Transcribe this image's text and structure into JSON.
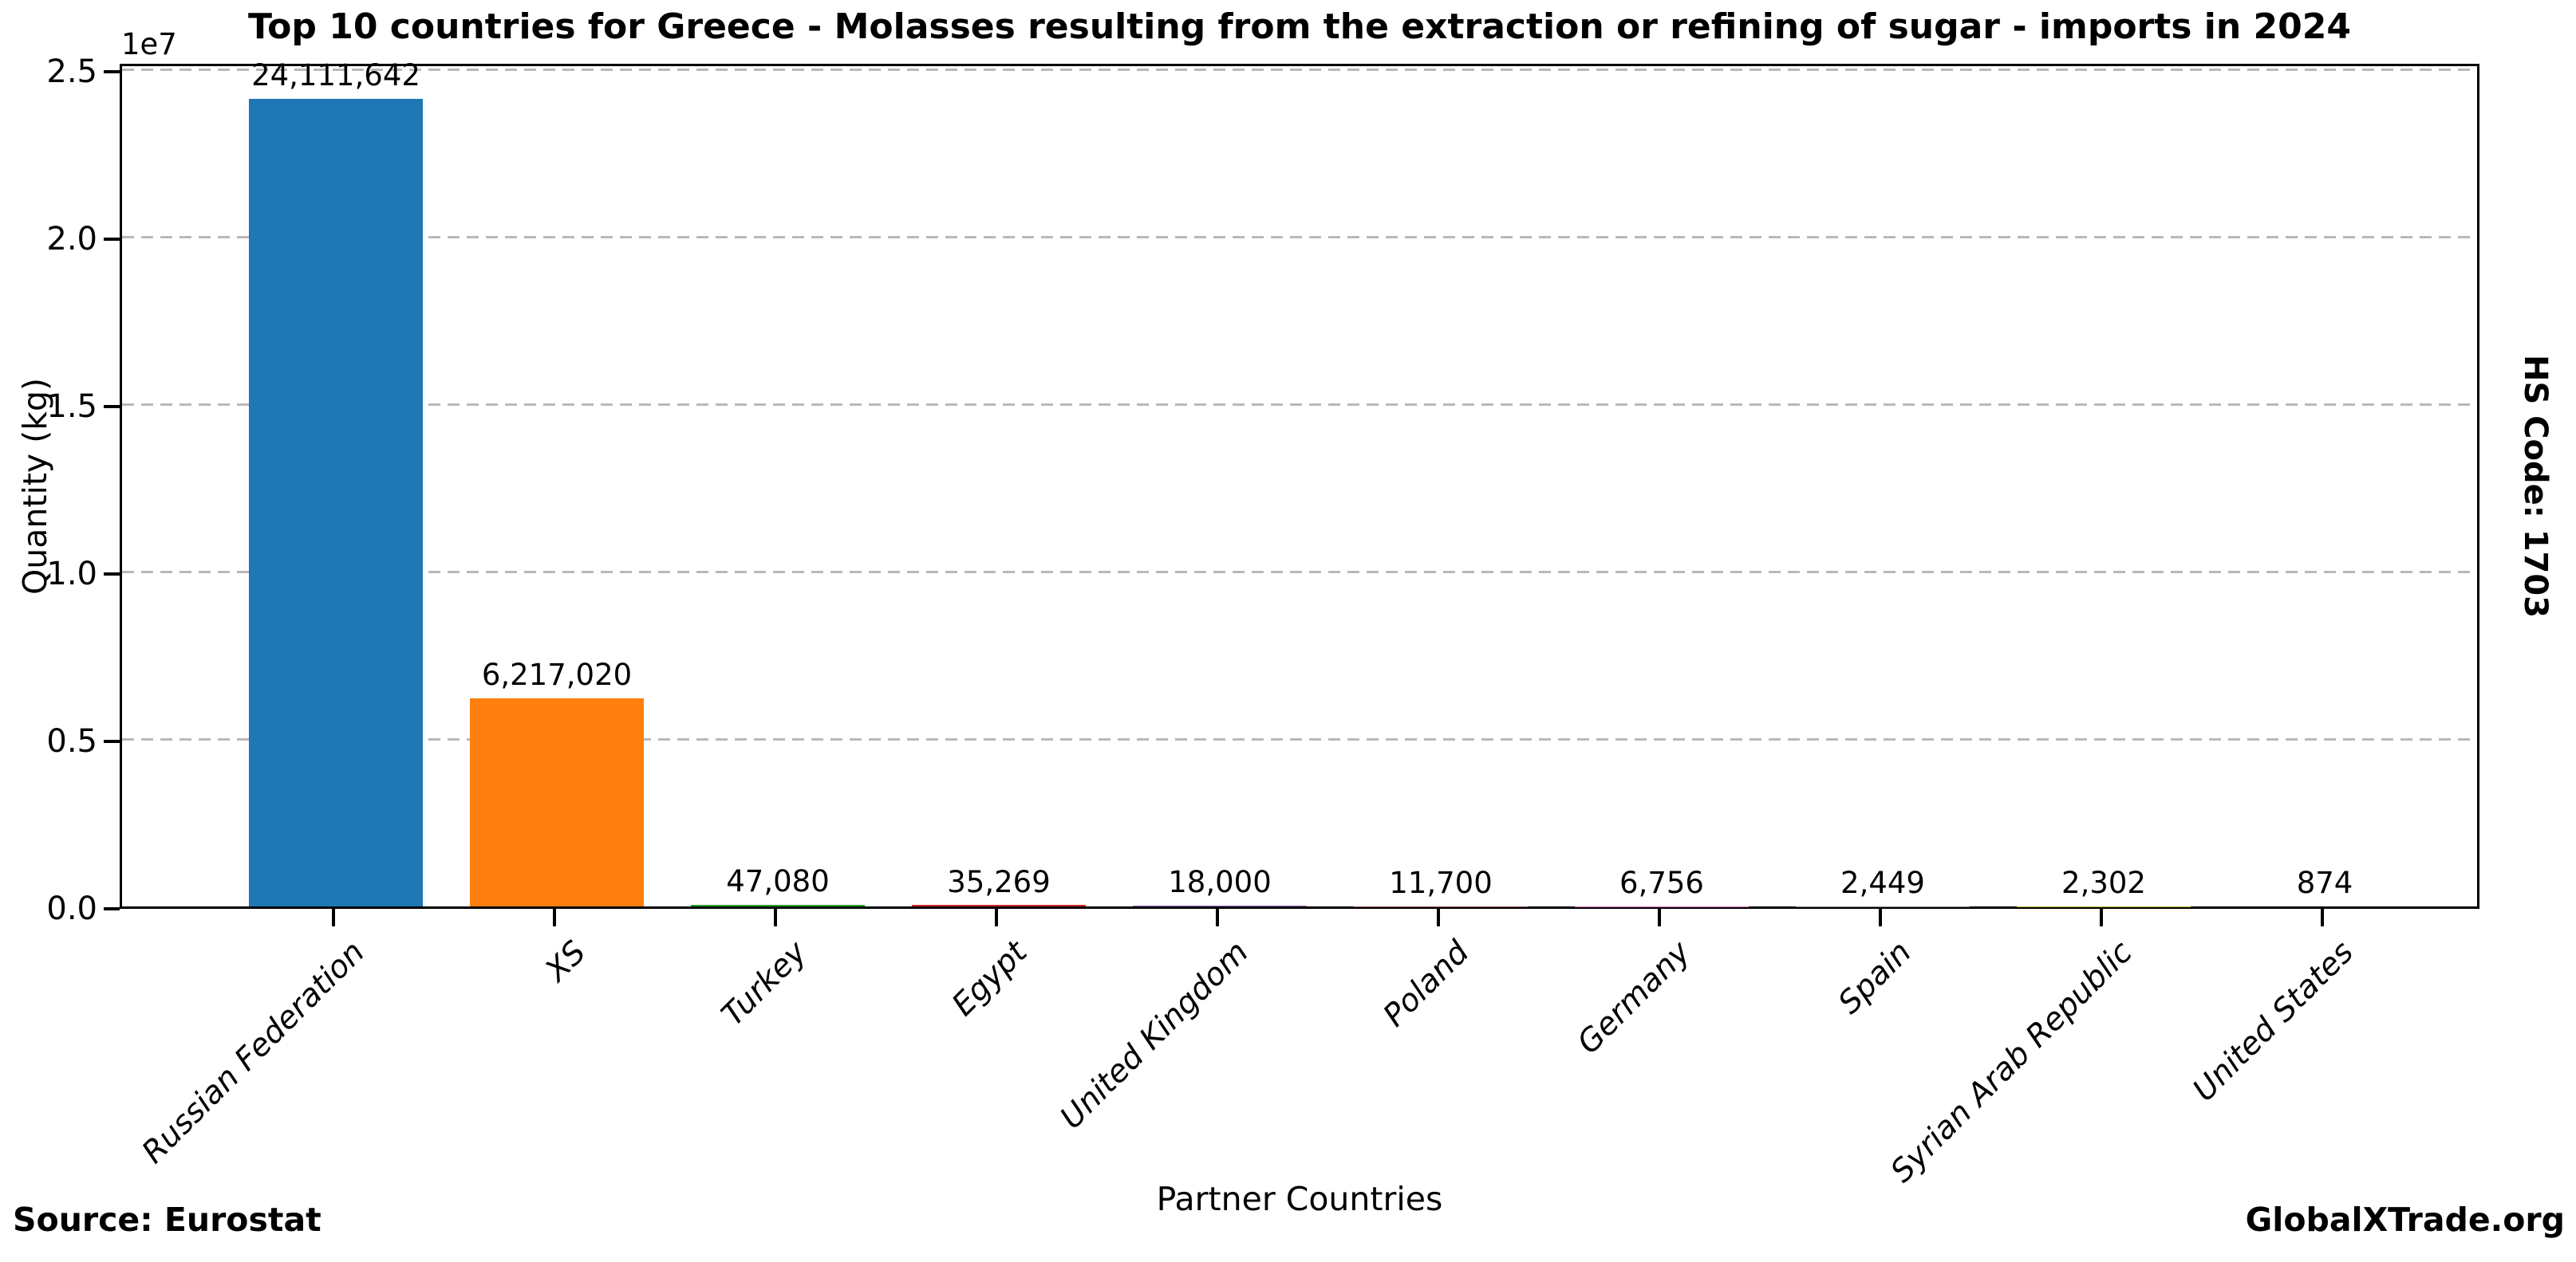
{
  "title": "Top 10 countries for Greece - Molasses resulting from the extraction or refining of sugar - imports in 2024",
  "axes": {
    "ylabel": "Quantity (kg)",
    "xlabel": "Partner Countries",
    "offset_label": "1e7",
    "ytick_labels": [
      "0.0",
      "0.5",
      "1.0",
      "1.5",
      "2.0",
      "2.5"
    ],
    "ytick_values": [
      0,
      5000000,
      10000000,
      15000000,
      20000000,
      25000000
    ]
  },
  "side_label": "HS Code: 1703",
  "footer": {
    "source": "Source: Eurostat",
    "brand": "GlobalXTrade.org"
  },
  "chart_data": {
    "type": "bar",
    "title": "Top 10 countries for Greece - Molasses resulting from the extraction or refining of sugar - imports in 2024",
    "xlabel": "Partner Countries",
    "ylabel": "Quantity (kg)",
    "categories": [
      "Russian Federation",
      "XS",
      "Turkey",
      "Egypt",
      "United Kingdom",
      "Poland",
      "Germany",
      "Spain",
      "Syrian Arab Republic",
      "United States"
    ],
    "values": [
      24111642,
      6217020,
      47080,
      35269,
      18000,
      11700,
      6756,
      2449,
      2302,
      874
    ],
    "bar_labels": [
      "24,111,642",
      "6,217,020",
      "47,080",
      "35,269",
      "18,000",
      "11,700",
      "6,756",
      "2,449",
      "2,302",
      "874"
    ],
    "bar_colors": [
      "#1f77b4",
      "#ff7f0e",
      "#2ca02c",
      "#d62728",
      "#9467bd",
      "#8c564b",
      "#e377c2",
      "#7f7f7f",
      "#bcbd22",
      "#17becf"
    ],
    "ylim": [
      0,
      25238095
    ],
    "grid": "horizontal-dashed",
    "gridline_values": [
      5000000,
      10000000,
      15000000,
      20000000,
      25000000
    ],
    "legend_position": "none",
    "xtick_style": "italic, rotated 45deg",
    "grid_color": "#b9b9b9"
  }
}
